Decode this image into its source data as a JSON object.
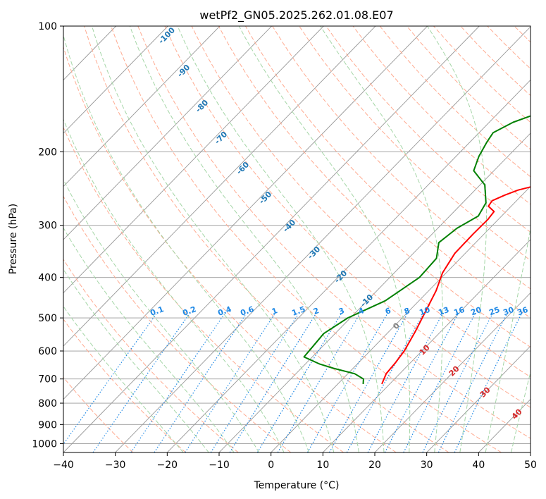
{
  "chart_data": {
    "type": "line",
    "title": "wetPf2_GN05.2025.262.01.08.E07",
    "xlabel": "Temperature (°C)",
    "ylabel": "Pressure (hPa)",
    "xlim": [
      -40,
      50
    ],
    "ylim": [
      1050,
      100
    ],
    "y_scale": "log",
    "skew": true,
    "grid": true,
    "x_ticks": [
      -40,
      -30,
      -20,
      -10,
      0,
      10,
      20,
      30,
      40,
      50
    ],
    "y_ticks": [
      100,
      200,
      300,
      400,
      500,
      600,
      700,
      800,
      900,
      1000
    ],
    "series": [
      {
        "color": "#ff0000",
        "x": [
          8.5,
          7.4,
          7.1,
          6.6,
          5.1,
          3.2,
          1.4,
          -0.7,
          -2.0,
          -2.1,
          -2.0,
          -2.3,
          -4.4,
          -4.7,
          -3.3,
          -1.7,
          3.5,
          8.2,
          11.9,
          13.4,
          14.8,
          16.2,
          19.0,
          21.8,
          22.8,
          23.7,
          23.8
        ],
        "y": [
          720,
          680,
          640,
          600,
          540,
          480,
          430,
          390,
          350,
          315,
          290,
          278,
          270,
          262,
          254,
          247,
          235,
          218,
          200,
          190,
          175,
          165,
          150,
          135,
          122,
          112,
          100
        ]
      },
      {
        "color": "#008000",
        "x": [
          4.9,
          4.0,
          1.3,
          -3.8,
          -7.2,
          -11.6,
          -11.9,
          -12.2,
          -10.5,
          -6.5,
          -4.3,
          -4.6,
          -7.1,
          -6.3,
          -4.5,
          -5.5,
          -9.1,
          -13.9,
          -15.6,
          -16.7,
          -17.3,
          -15.4,
          -11.6,
          -9.8,
          -6.7,
          -3.7,
          -1.6
        ],
        "y": [
          720,
          700,
          680,
          660,
          645,
          620,
          580,
          545,
          500,
          455,
          400,
          360,
          330,
          305,
          285,
          265,
          240,
          222,
          205,
          190,
          180,
          170,
          160,
          145,
          130,
          115,
          100
        ]
      }
    ],
    "dry_adiabat_labels": [
      "-100",
      "-90",
      "-80",
      "-70",
      "-60",
      "-50",
      "-40",
      "-30",
      "-20",
      "-10"
    ],
    "mixing_ratio_labels": [
      "0.1",
      "0.2",
      "0.4",
      "0.6",
      "1",
      "1.5",
      "2",
      "3",
      "4",
      "6",
      "8",
      "10",
      "13",
      "16",
      "20",
      "25",
      "30",
      "36"
    ],
    "moist_adiabat_labels": [
      "0",
      "10",
      "20",
      "30",
      "40"
    ],
    "colors": {
      "temperature": "#ff0000",
      "dewpoint": "#008000",
      "isotherm": "#999999",
      "dry_adiabat": "#ffab91",
      "moist_adiabat": "#a5d6a7",
      "mixing_ratio": "#1e88e5",
      "dry_adiabat_label": "#1f77b4",
      "moist_adiabat_label": "#d62728",
      "zero_label": "#808080"
    }
  }
}
